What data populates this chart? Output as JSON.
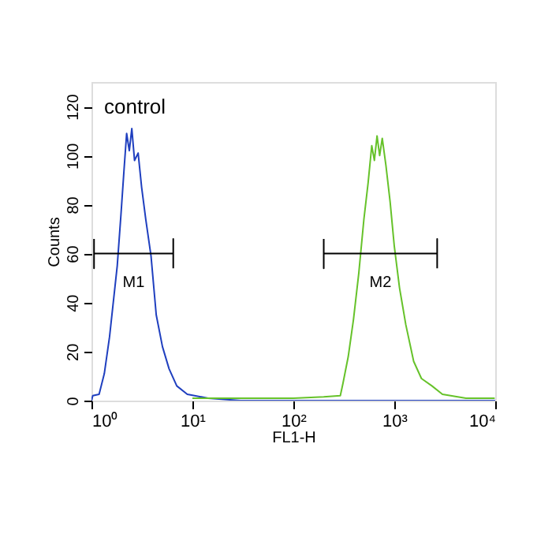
{
  "chart_data": {
    "type": "line",
    "xlabel": "FL1-H",
    "ylabel": "Counts",
    "log": "x",
    "xlim": [
      1,
      10000
    ],
    "ylim": [
      0,
      130
    ],
    "xticks": [
      {
        "value": 1,
        "label": "10⁰"
      },
      {
        "value": 10,
        "label": "10¹"
      },
      {
        "value": 100,
        "label": "10²"
      },
      {
        "value": 1000,
        "label": "10³"
      },
      {
        "value": 10000,
        "label": "10⁴"
      }
    ],
    "yticks": [
      0,
      20,
      40,
      60,
      80,
      100,
      120
    ],
    "grid": false,
    "legend": false,
    "series": [
      {
        "color": "#1f3fbf",
        "x": [
          1.0,
          1.03,
          1.19,
          1.34,
          1.51,
          1.8,
          1.96,
          2.1,
          2.23,
          2.37,
          2.51,
          2.67,
          2.9,
          3.14,
          3.45,
          3.89,
          4.38,
          5.05,
          5.87,
          7.0,
          8.9,
          14.3,
          30,
          100,
          1000,
          10000
        ],
        "values": [
          0,
          2,
          2.6,
          11,
          26,
          55,
          76,
          94,
          109,
          102,
          111,
          98,
          101,
          87,
          74,
          59,
          35,
          22,
          13,
          6,
          2.6,
          1,
          0,
          0,
          0,
          0
        ]
      },
      {
        "color": "#66c22a",
        "x": [
          10,
          30,
          100,
          200,
          292,
          310,
          350,
          394,
          445,
          500,
          551,
          598,
          635,
          675,
          716,
          760,
          826,
          910,
          1000,
          1127,
          1300,
          1556,
          1858,
          2360,
          3000,
          5130,
          9890
        ],
        "values": [
          1,
          1,
          1,
          1.5,
          2,
          7,
          18,
          33,
          52,
          74,
          89,
          104,
          98,
          108,
          100,
          107,
          96,
          81,
          63,
          46,
          31,
          16,
          9,
          6,
          2.6,
          1,
          1
        ]
      },
      {
        "name": "M1",
        "color": "#000000",
        "x": [
          1.06,
          1.06,
          1.06,
          6.46,
          6.46,
          6.46
        ],
        "values": [
          66,
          54,
          60,
          60,
          66,
          54
        ]
      },
      {
        "name": "M2",
        "color": "#000000",
        "x": [
          200,
          200,
          200,
          2660,
          2660,
          2660
        ],
        "values": [
          66,
          54,
          60,
          60,
          66,
          54
        ]
      }
    ],
    "annotations": [
      "control"
    ]
  }
}
